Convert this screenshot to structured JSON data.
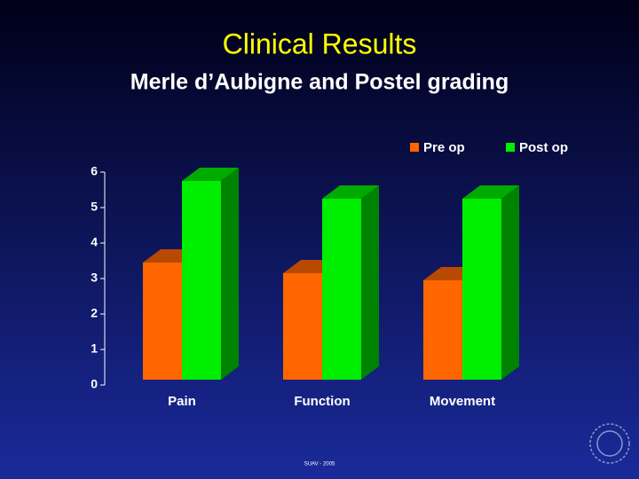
{
  "chart_data": {
    "type": "bar3d",
    "title": "Clinical Results",
    "subtitle": "Merle d’Aubigne and Postel grading",
    "categories": [
      "Pain",
      "Function",
      "Movement"
    ],
    "series": [
      {
        "name": "Pre op",
        "color": "#ff6600",
        "values": [
          3.3,
          3.0,
          2.8
        ]
      },
      {
        "name": "Post op",
        "color": "#00ee00",
        "values": [
          5.6,
          5.1,
          5.1
        ]
      }
    ],
    "ylim": [
      0,
      6
    ],
    "yticks": [
      0,
      1,
      2,
      3,
      4,
      5,
      6
    ],
    "legend": "top-right",
    "footer": "SUAV - 2005"
  }
}
